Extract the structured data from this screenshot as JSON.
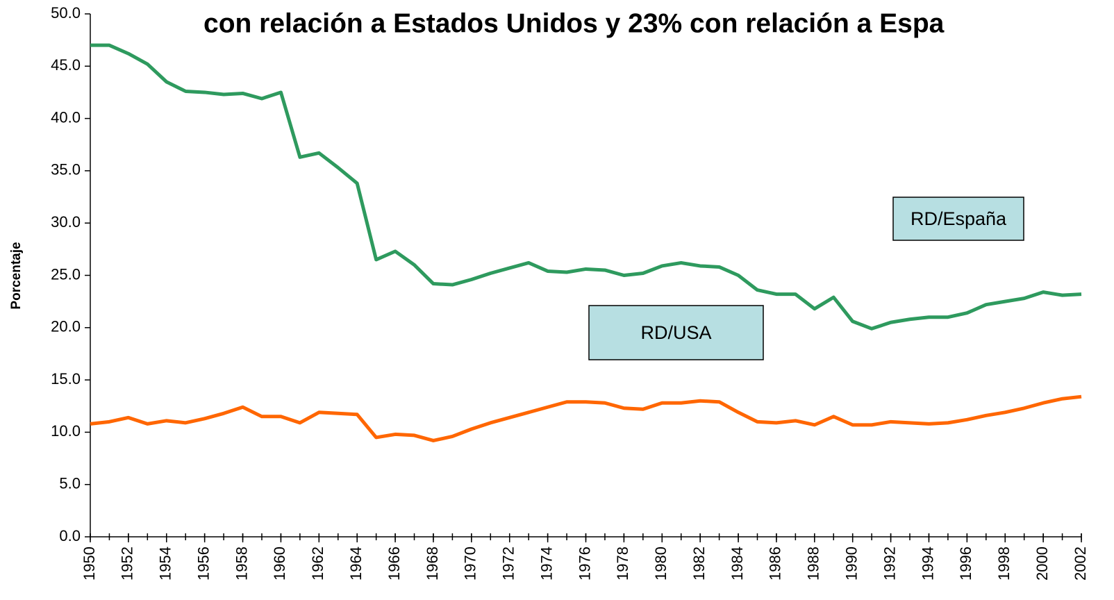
{
  "chart_data": {
    "type": "line",
    "title": "con relación a Estados Unidos y 23% con relación a Espa",
    "y_label": "Porcentaje",
    "x": [
      1950,
      1951,
      1952,
      1953,
      1954,
      1955,
      1956,
      1957,
      1958,
      1959,
      1960,
      1961,
      1962,
      1963,
      1964,
      1965,
      1966,
      1967,
      1968,
      1969,
      1970,
      1971,
      1972,
      1973,
      1974,
      1975,
      1976,
      1977,
      1978,
      1979,
      1980,
      1981,
      1982,
      1983,
      1984,
      1985,
      1986,
      1987,
      1988,
      1989,
      1990,
      1991,
      1992,
      1993,
      1994,
      1995,
      1996,
      1997,
      1998,
      1999,
      2000,
      2001,
      2002
    ],
    "series": [
      {
        "name": "RD/España",
        "color": "#2e9a5e",
        "values": [
          47.0,
          47.0,
          46.2,
          45.2,
          43.5,
          42.6,
          42.5,
          42.3,
          42.4,
          41.9,
          42.5,
          36.3,
          36.7,
          35.3,
          33.8,
          26.5,
          27.3,
          26.0,
          24.2,
          24.1,
          24.6,
          25.2,
          25.7,
          26.2,
          25.4,
          25.3,
          25.6,
          25.5,
          25.0,
          25.2,
          25.9,
          26.2,
          25.9,
          25.8,
          25.0,
          23.6,
          23.2,
          23.2,
          21.8,
          22.9,
          20.6,
          19.9,
          20.5,
          20.8,
          21.0,
          21.0,
          21.4,
          22.2,
          22.5,
          22.8,
          23.4,
          23.1,
          23.2
        ]
      },
      {
        "name": "RD/USA",
        "color": "#ff6600",
        "values": [
          10.8,
          11.0,
          11.4,
          10.8,
          11.1,
          10.9,
          11.3,
          11.8,
          12.4,
          11.5,
          11.5,
          10.9,
          11.9,
          11.8,
          11.7,
          9.5,
          9.8,
          9.7,
          9.2,
          9.6,
          10.3,
          10.9,
          11.4,
          11.9,
          12.4,
          12.9,
          12.9,
          12.8,
          12.3,
          12.2,
          12.8,
          12.8,
          13.0,
          12.9,
          11.9,
          11.0,
          10.9,
          11.1,
          10.7,
          11.5,
          10.7,
          10.7,
          11.0,
          10.9,
          10.8,
          10.9,
          11.2,
          11.6,
          11.9,
          12.3,
          12.8,
          13.2,
          13.4
        ]
      }
    ],
    "xlim": [
      1950,
      2002
    ],
    "xticks": [
      1950,
      1952,
      1954,
      1956,
      1958,
      1960,
      1962,
      1964,
      1966,
      1968,
      1970,
      1972,
      1974,
      1976,
      1978,
      1980,
      1982,
      1984,
      1986,
      1988,
      1990,
      1992,
      1994,
      1996,
      1998,
      2000,
      2002
    ],
    "ylim": [
      0,
      50
    ],
    "yticks": [
      {
        "value": 0,
        "label": "0.0"
      },
      {
        "value": 5,
        "label": "5.0"
      },
      {
        "value": 10,
        "label": "10.0"
      },
      {
        "value": 15,
        "label": "15.0"
      },
      {
        "value": 20,
        "label": "20.0"
      },
      {
        "value": 25,
        "label": "25.0"
      },
      {
        "value": 30,
        "label": "30.0"
      },
      {
        "value": 35,
        "label": "35.0"
      },
      {
        "value": 40,
        "label": "40.0"
      },
      {
        "value": 45,
        "label": "45.0"
      },
      {
        "value": 50,
        "label": "50.0"
      }
    ],
    "grid": false,
    "label_box_color": "#b7dfe2"
  }
}
